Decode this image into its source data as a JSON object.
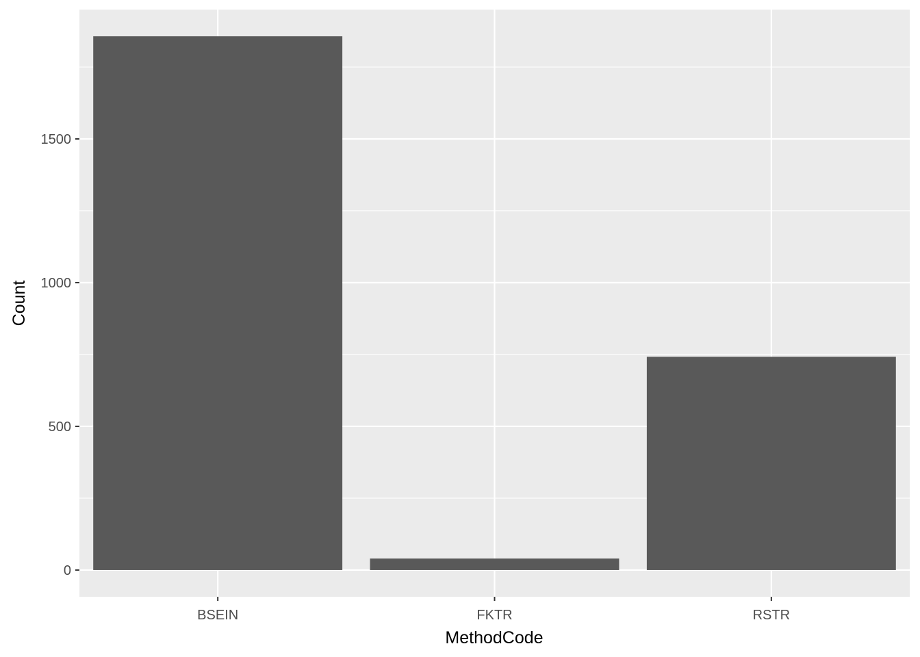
{
  "chart_data": {
    "type": "bar",
    "categories": [
      "BSEIN",
      "FKTR",
      "RSTR"
    ],
    "values": [
      1857,
      40,
      742
    ],
    "xlabel": "MethodCode",
    "ylabel": "Count",
    "ylim": [
      -93,
      1950
    ],
    "yticks": [
      0,
      500,
      1000,
      1500
    ],
    "ytick_labels": [
      "0",
      "500",
      "1000",
      "1500"
    ],
    "grid": true,
    "colors": {
      "panel": "#EBEBEB",
      "bar": "#595959",
      "grid": "#FFFFFF"
    }
  }
}
